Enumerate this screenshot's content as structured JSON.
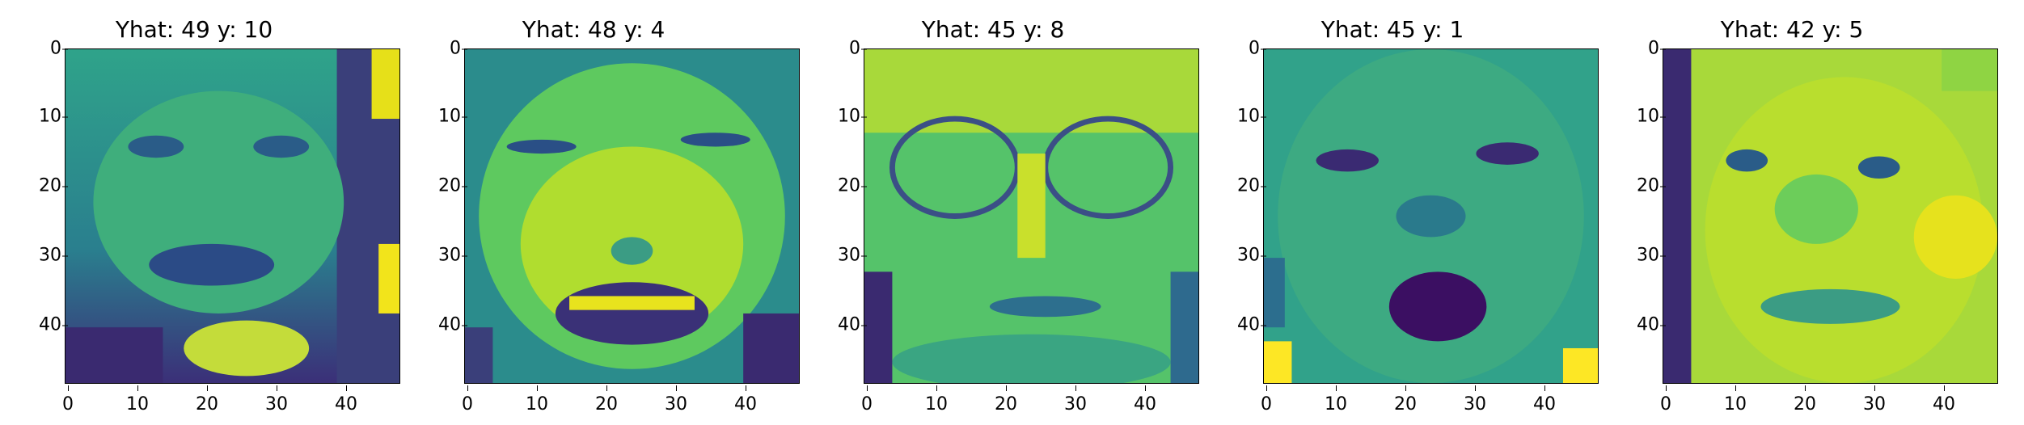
{
  "colormap": "viridis",
  "colors": {
    "viridis_dark": "#440154",
    "viridis_blue": "#31688e",
    "viridis_teal": "#21918c",
    "viridis_green": "#35b779",
    "viridis_yellow": "#fde725"
  },
  "panels": [
    {
      "title": "Yhat: 49 y: 10",
      "y_ticks": [
        "0",
        "10",
        "20",
        "30",
        "40"
      ],
      "x_ticks": [
        "0",
        "10",
        "20",
        "30",
        "40"
      ]
    },
    {
      "title": "Yhat: 48 y: 4",
      "y_ticks": [
        "0",
        "10",
        "20",
        "30",
        "40"
      ],
      "x_ticks": [
        "0",
        "10",
        "20",
        "30",
        "40"
      ]
    },
    {
      "title": "Yhat: 45 y: 8",
      "y_ticks": [
        "0",
        "10",
        "20",
        "30",
        "40"
      ],
      "x_ticks": [
        "0",
        "10",
        "20",
        "30",
        "40"
      ]
    },
    {
      "title": "Yhat: 45 y: 1",
      "y_ticks": [
        "0",
        "10",
        "20",
        "30",
        "40"
      ],
      "x_ticks": [
        "0",
        "10",
        "20",
        "30",
        "40"
      ]
    },
    {
      "title": "Yhat: 42 y: 5",
      "y_ticks": [
        "0",
        "10",
        "20",
        "30",
        "40"
      ],
      "x_ticks": [
        "0",
        "10",
        "20",
        "30",
        "40"
      ]
    }
  ]
}
